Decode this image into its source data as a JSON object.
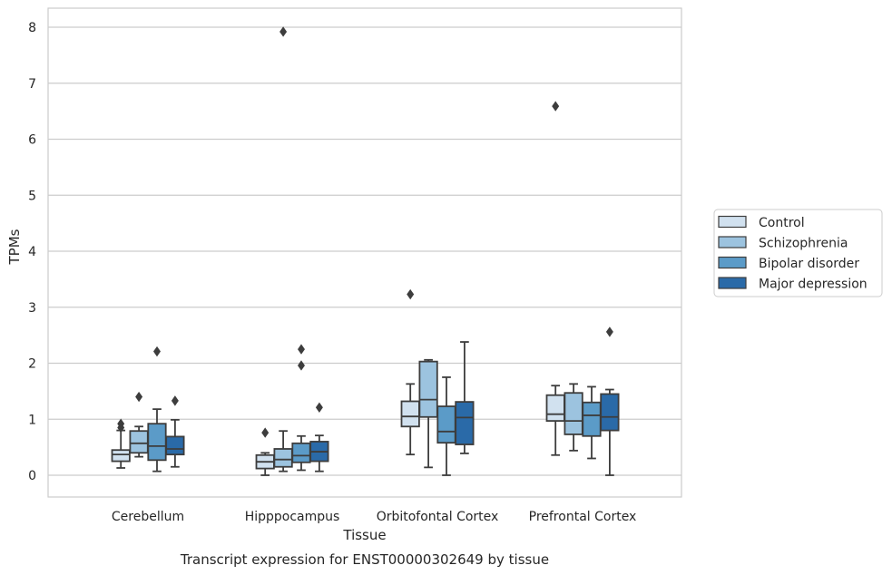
{
  "caption": "Transcript expression for ENST00000302649 by tissue",
  "chart_data": {
    "type": "box",
    "xlabel": "Tissue",
    "ylabel": "TPMs",
    "ylim": [
      -0.4,
      8.3
    ],
    "yticks": [
      0,
      1,
      2,
      3,
      4,
      5,
      6,
      7,
      8
    ],
    "grid": "horizontal",
    "legend_position": "right",
    "categories": [
      "Cerebellum",
      "Hipppocampus",
      "Orbitofontal Cortex",
      "Prefrontal Cortex"
    ],
    "series": [
      {
        "name": "Control",
        "color": "#d1e1ef",
        "boxes": [
          {
            "whisker_low": 0.13,
            "q1": 0.25,
            "median": 0.37,
            "q3": 0.45,
            "whisker_high": 0.8,
            "outliers": [
              0.85,
              0.92
            ]
          },
          {
            "whisker_low": 0.0,
            "q1": 0.12,
            "median": 0.24,
            "q3": 0.36,
            "whisker_high": 0.4,
            "outliers": [
              0.76
            ]
          },
          {
            "whisker_low": 0.37,
            "q1": 0.87,
            "median": 1.05,
            "q3": 1.32,
            "whisker_high": 1.63,
            "outliers": [
              3.23
            ]
          },
          {
            "whisker_low": 0.36,
            "q1": 0.97,
            "median": 1.09,
            "q3": 1.43,
            "whisker_high": 1.6,
            "outliers": [
              6.59
            ]
          }
        ]
      },
      {
        "name": "Schizophrenia",
        "color": "#9cc3df",
        "boxes": [
          {
            "whisker_low": 0.33,
            "q1": 0.4,
            "median": 0.57,
            "q3": 0.79,
            "whisker_high": 0.87,
            "outliers": [
              1.4
            ]
          },
          {
            "whisker_low": 0.07,
            "q1": 0.15,
            "median": 0.28,
            "q3": 0.47,
            "whisker_high": 0.79,
            "outliers": [
              7.92
            ]
          },
          {
            "whisker_low": 0.14,
            "q1": 1.04,
            "median": 1.35,
            "q3": 2.03,
            "whisker_high": 2.06,
            "outliers": []
          },
          {
            "whisker_low": 0.44,
            "q1": 0.73,
            "median": 0.97,
            "q3": 1.47,
            "whisker_high": 1.63,
            "outliers": []
          }
        ]
      },
      {
        "name": "Bipolar disorder",
        "color": "#5b9bc8",
        "boxes": [
          {
            "whisker_low": 0.07,
            "q1": 0.27,
            "median": 0.52,
            "q3": 0.92,
            "whisker_high": 1.18,
            "outliers": [
              2.21
            ]
          },
          {
            "whisker_low": 0.09,
            "q1": 0.23,
            "median": 0.35,
            "q3": 0.57,
            "whisker_high": 0.7,
            "outliers": [
              1.96,
              2.25
            ]
          },
          {
            "whisker_low": 0.0,
            "q1": 0.58,
            "median": 0.78,
            "q3": 1.23,
            "whisker_high": 1.75,
            "outliers": []
          },
          {
            "whisker_low": 0.3,
            "q1": 0.7,
            "median": 1.07,
            "q3": 1.3,
            "whisker_high": 1.58,
            "outliers": []
          }
        ]
      },
      {
        "name": "Major depression",
        "color": "#2a6aa8",
        "boxes": [
          {
            "whisker_low": 0.15,
            "q1": 0.37,
            "median": 0.47,
            "q3": 0.69,
            "whisker_high": 0.99,
            "outliers": [
              1.33
            ]
          },
          {
            "whisker_low": 0.07,
            "q1": 0.25,
            "median": 0.42,
            "q3": 0.6,
            "whisker_high": 0.71,
            "outliers": [
              1.21
            ]
          },
          {
            "whisker_low": 0.39,
            "q1": 0.55,
            "median": 1.03,
            "q3": 1.31,
            "whisker_high": 2.38,
            "outliers": []
          },
          {
            "whisker_low": 0.0,
            "q1": 0.8,
            "median": 1.04,
            "q3": 1.45,
            "whisker_high": 1.53,
            "outliers": [
              2.56
            ]
          }
        ]
      }
    ]
  }
}
